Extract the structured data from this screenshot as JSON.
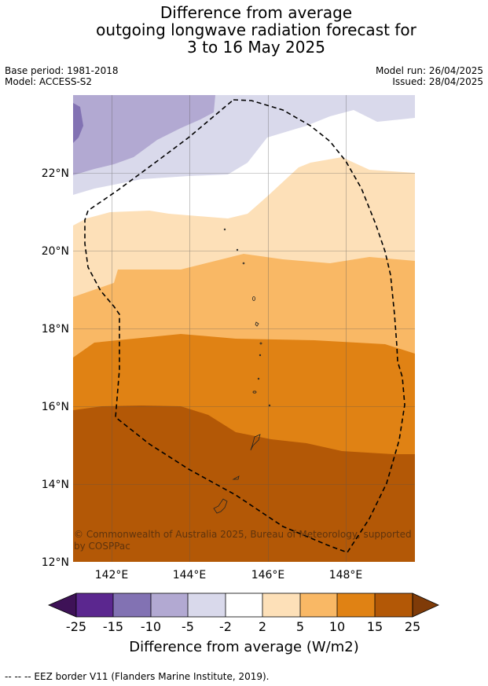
{
  "title_lines": [
    "Difference from average",
    "outgoing longwave radiation forecast for",
    "3 to 16 May 2025"
  ],
  "base_period": "Base period: 1981-2018",
  "model": "Model: ACCESS-S2",
  "model_run": "Model run: 26/04/2025",
  "issued": "Issued: 28/04/2025",
  "map": {
    "lat_labels": [
      "22°N",
      "20°N",
      "18°N",
      "16°N",
      "14°N",
      "12°N"
    ],
    "lon_labels": [
      "142°E",
      "144°E",
      "146°E",
      "148°E"
    ],
    "copyright": "© Commonwealth of Australia 2025, Bureau of Meteorology, supported by COSPPac"
  },
  "colorbar": {
    "ticks": [
      "-25",
      "-15",
      "-10",
      "-5",
      "-2",
      "2",
      "5",
      "10",
      "15",
      "25"
    ],
    "colors": [
      "#3e1257",
      "#5b278f",
      "#8272b3",
      "#b2a9d2",
      "#d9d9eb",
      "#ffffff",
      "#fde0b8",
      "#f9b865",
      "#e08214",
      "#b35806",
      "#7f3b08"
    ],
    "label": "Difference from average (W/m2)"
  },
  "footnote": "--  --  -- EEZ border V11 (Flanders Marine Institute, 2019)."
}
